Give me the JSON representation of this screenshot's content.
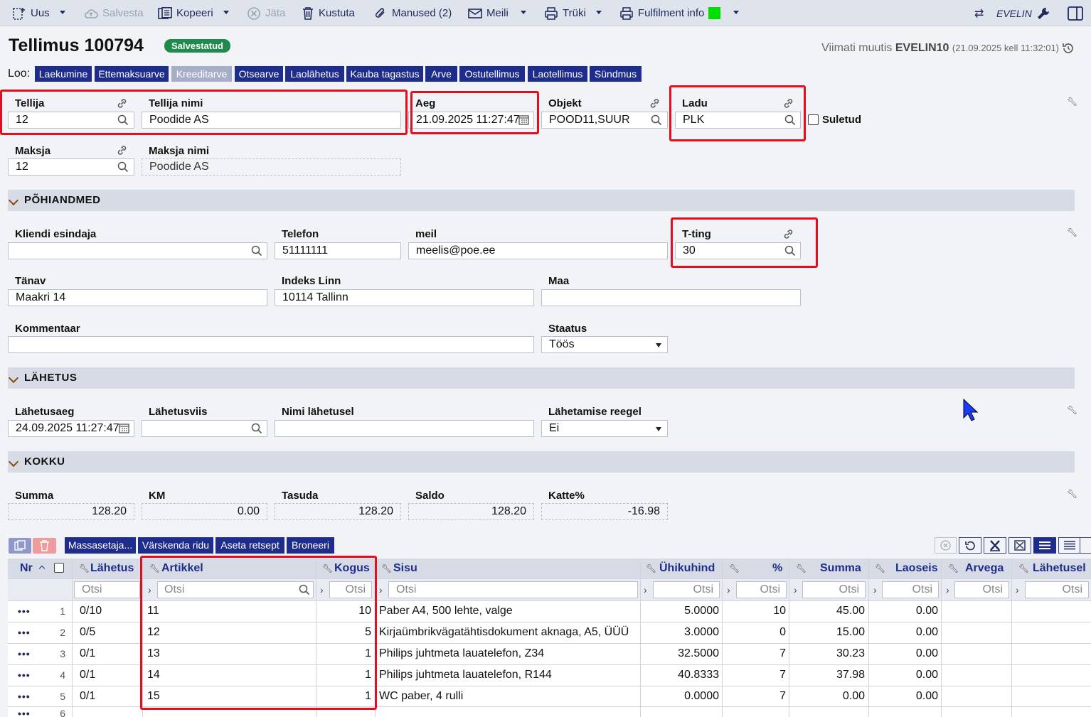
{
  "toolbar": {
    "uus": "Uus",
    "salvesta": "Salvesta",
    "kopeeri": "Kopeeri",
    "jata": "Jäta",
    "kustuta": "Kustuta",
    "manused": "Manused (2)",
    "meili": "Meili",
    "truki": "Trüki",
    "fulfilment": "Fulfilment info",
    "user": "EVELIN",
    "fulfilment_color": "#00e000"
  },
  "header": {
    "title": "Tellimus 100794",
    "status": "Salvestatud",
    "last_modified_prefix": "Viimati muutis",
    "last_modified_user": "EVELIN10",
    "last_modified_time": "(21.09.2025 kell 11:32:01)"
  },
  "create": {
    "label": "Loo:",
    "buttons": [
      "Laekumine",
      "Ettemaksuarve",
      "Kreeditarve",
      "Otsearve",
      "Laolähetus",
      "Kauba tagastus",
      "Arve",
      "Ostutellimus",
      "Laotellimus",
      "Sündmus"
    ]
  },
  "fields": {
    "tellija": {
      "label": "Tellija",
      "value": "12"
    },
    "tellija_nimi": {
      "label": "Tellija nimi",
      "value": "Poodide AS"
    },
    "aeg": {
      "label": "Aeg",
      "value": "21.09.2025 11:27:47"
    },
    "objekt": {
      "label": "Objekt",
      "value": "POOD11,SUUR"
    },
    "ladu": {
      "label": "Ladu",
      "value": "PLK"
    },
    "suletud": {
      "label": "Suletud"
    },
    "maksja": {
      "label": "Maksja",
      "value": "12"
    },
    "maksja_nimi": {
      "label": "Maksja nimi",
      "value": "Poodide AS"
    }
  },
  "pohiandmed": {
    "title": "PÕHIANDMED",
    "kliendi_esindaja": {
      "label": "Kliendi esindaja",
      "value": ""
    },
    "telefon": {
      "label": "Telefon",
      "value": "51111111"
    },
    "meil": {
      "label": "meil",
      "value": "meelis@poe.ee"
    },
    "tting": {
      "label": "T-ting",
      "value": "30"
    },
    "tanav": {
      "label": "Tänav",
      "value": "Maakri 14"
    },
    "indeks_linn": {
      "label": "Indeks Linn",
      "value": "10114 Tallinn"
    },
    "maa": {
      "label": "Maa",
      "value": ""
    },
    "kommentaar": {
      "label": "Kommentaar",
      "value": ""
    },
    "staatus": {
      "label": "Staatus",
      "value": "Töös"
    }
  },
  "lahetus": {
    "title": "LÄHETUS",
    "lahetusaeg": {
      "label": "Lähetusaeg",
      "value": "24.09.2025 11:27:47"
    },
    "lahetusviis": {
      "label": "Lähetusviis",
      "value": ""
    },
    "nimi_lahetusel": {
      "label": "Nimi lähetusel",
      "value": ""
    },
    "reegel": {
      "label": "Lähetamise reegel",
      "value": "Ei"
    }
  },
  "kokku": {
    "title": "KOKKU",
    "summa": {
      "label": "Summa",
      "value": "128.20"
    },
    "km": {
      "label": "KM",
      "value": "0.00"
    },
    "tasuda": {
      "label": "Tasuda",
      "value": "128.20"
    },
    "saldo": {
      "label": "Saldo",
      "value": "128.20"
    },
    "katte": {
      "label": "Katte%",
      "value": "-16.98"
    }
  },
  "grid_buttons": [
    "Massasetaja...",
    "Värskenda ridu",
    "Aseta retsept",
    "Broneeri"
  ],
  "grid": {
    "headers": {
      "nr": "Nr",
      "lahetus": "Lähetus",
      "artikkel": "Artikkel",
      "kogus": "Kogus",
      "sisu": "Sisu",
      "uhikuhind": "Ühikuhind",
      "pct": "%",
      "summa": "Summa",
      "laoseis": "Laoseis",
      "arvega": "Arvega",
      "lahetusel": "Lähetusel"
    },
    "filter_placeholder": "Otsi",
    "rows": [
      {
        "nr": "1",
        "lahetus": "0/10",
        "artikkel": "11",
        "kogus": "10",
        "sisu": "Paber A4, 500 lehte, valge",
        "uhikuhind": "5.0000",
        "pct": "10",
        "summa": "45.00",
        "laoseis": "0.00"
      },
      {
        "nr": "2",
        "lahetus": "0/5",
        "artikkel": "12",
        "kogus": "5",
        "sisu": "Kirjaümbrikvägatähtisdokument aknaga, A5, ÜÜÜ",
        "uhikuhind": "3.0000",
        "pct": "0",
        "summa": "15.00",
        "laoseis": "0.00"
      },
      {
        "nr": "3",
        "lahetus": "0/1",
        "artikkel": "13",
        "kogus": "1",
        "sisu": "Philips juhtmeta lauatelefon, Z34",
        "uhikuhind": "32.5000",
        "pct": "7",
        "summa": "30.23",
        "laoseis": "0.00"
      },
      {
        "nr": "4",
        "lahetus": "0/1",
        "artikkel": "14",
        "kogus": "1",
        "sisu": "Philips juhtmeta lauatelefon, R144",
        "uhikuhind": "40.8333",
        "pct": "7",
        "summa": "37.98",
        "laoseis": "0.00"
      },
      {
        "nr": "5",
        "lahetus": "0/1",
        "artikkel": "15",
        "kogus": "1",
        "sisu": "WC paber, 4 rulli",
        "uhikuhind": "0.0000",
        "pct": "7",
        "summa": "0.00",
        "laoseis": "0.00"
      }
    ],
    "next_row_nr": "6"
  }
}
